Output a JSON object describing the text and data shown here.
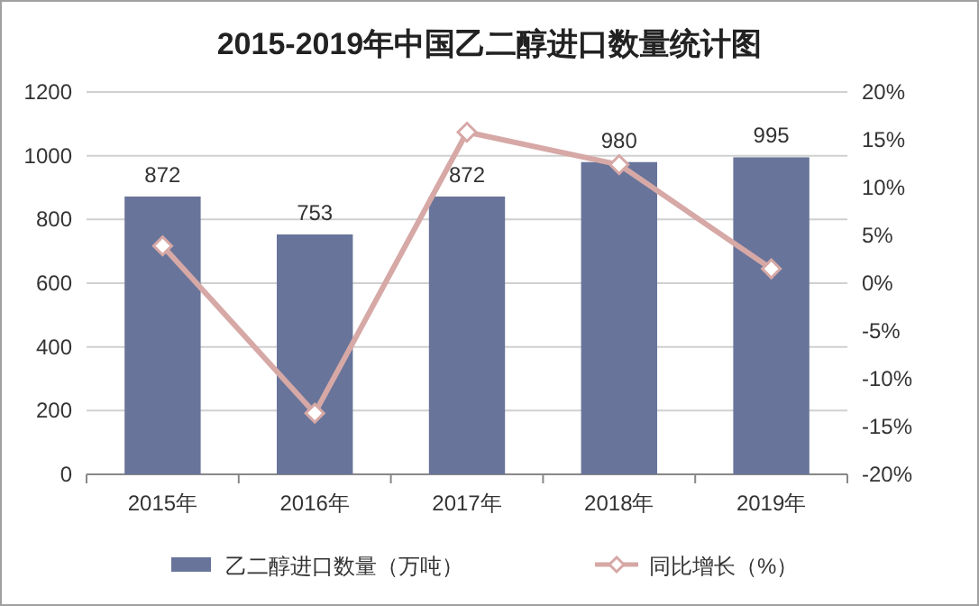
{
  "chart_data": {
    "type": "bar",
    "title": "2015-2019年中国乙二醇进口数量统计图",
    "categories": [
      "2015年",
      "2016年",
      "2017年",
      "2018年",
      "2019年"
    ],
    "series": [
      {
        "name": "乙二醇进口数量（万吨）",
        "color": "#68749a",
        "values": [
          872,
          753,
          872,
          980,
          995
        ],
        "value_labels": [
          "872",
          "753",
          "872",
          "980",
          "995"
        ]
      },
      {
        "name": "同比增长（%）",
        "type": "line",
        "axis": "y2",
        "color": "#d6a8a6",
        "marker": "diamond",
        "values": [
          3.9,
          -13.6,
          15.8,
          12.4,
          1.5
        ]
      }
    ],
    "ylim": [
      0,
      1200
    ],
    "yticks": [
      0,
      200,
      400,
      600,
      800,
      1000,
      1200
    ],
    "y2lim": [
      -20,
      20
    ],
    "y2ticks": [
      {
        "value": -20,
        "label": "-20%"
      },
      {
        "value": -15,
        "label": "-15%"
      },
      {
        "value": -10,
        "label": "-10%"
      },
      {
        "value": -5,
        "label": "-5%"
      },
      {
        "value": 0,
        "label": "0%"
      },
      {
        "value": 5,
        "label": "5%"
      },
      {
        "value": 10,
        "label": "10%"
      },
      {
        "value": 15,
        "label": "15%"
      },
      {
        "value": 20,
        "label": "20%"
      }
    ],
    "grid": "y",
    "legend": "bottom"
  }
}
